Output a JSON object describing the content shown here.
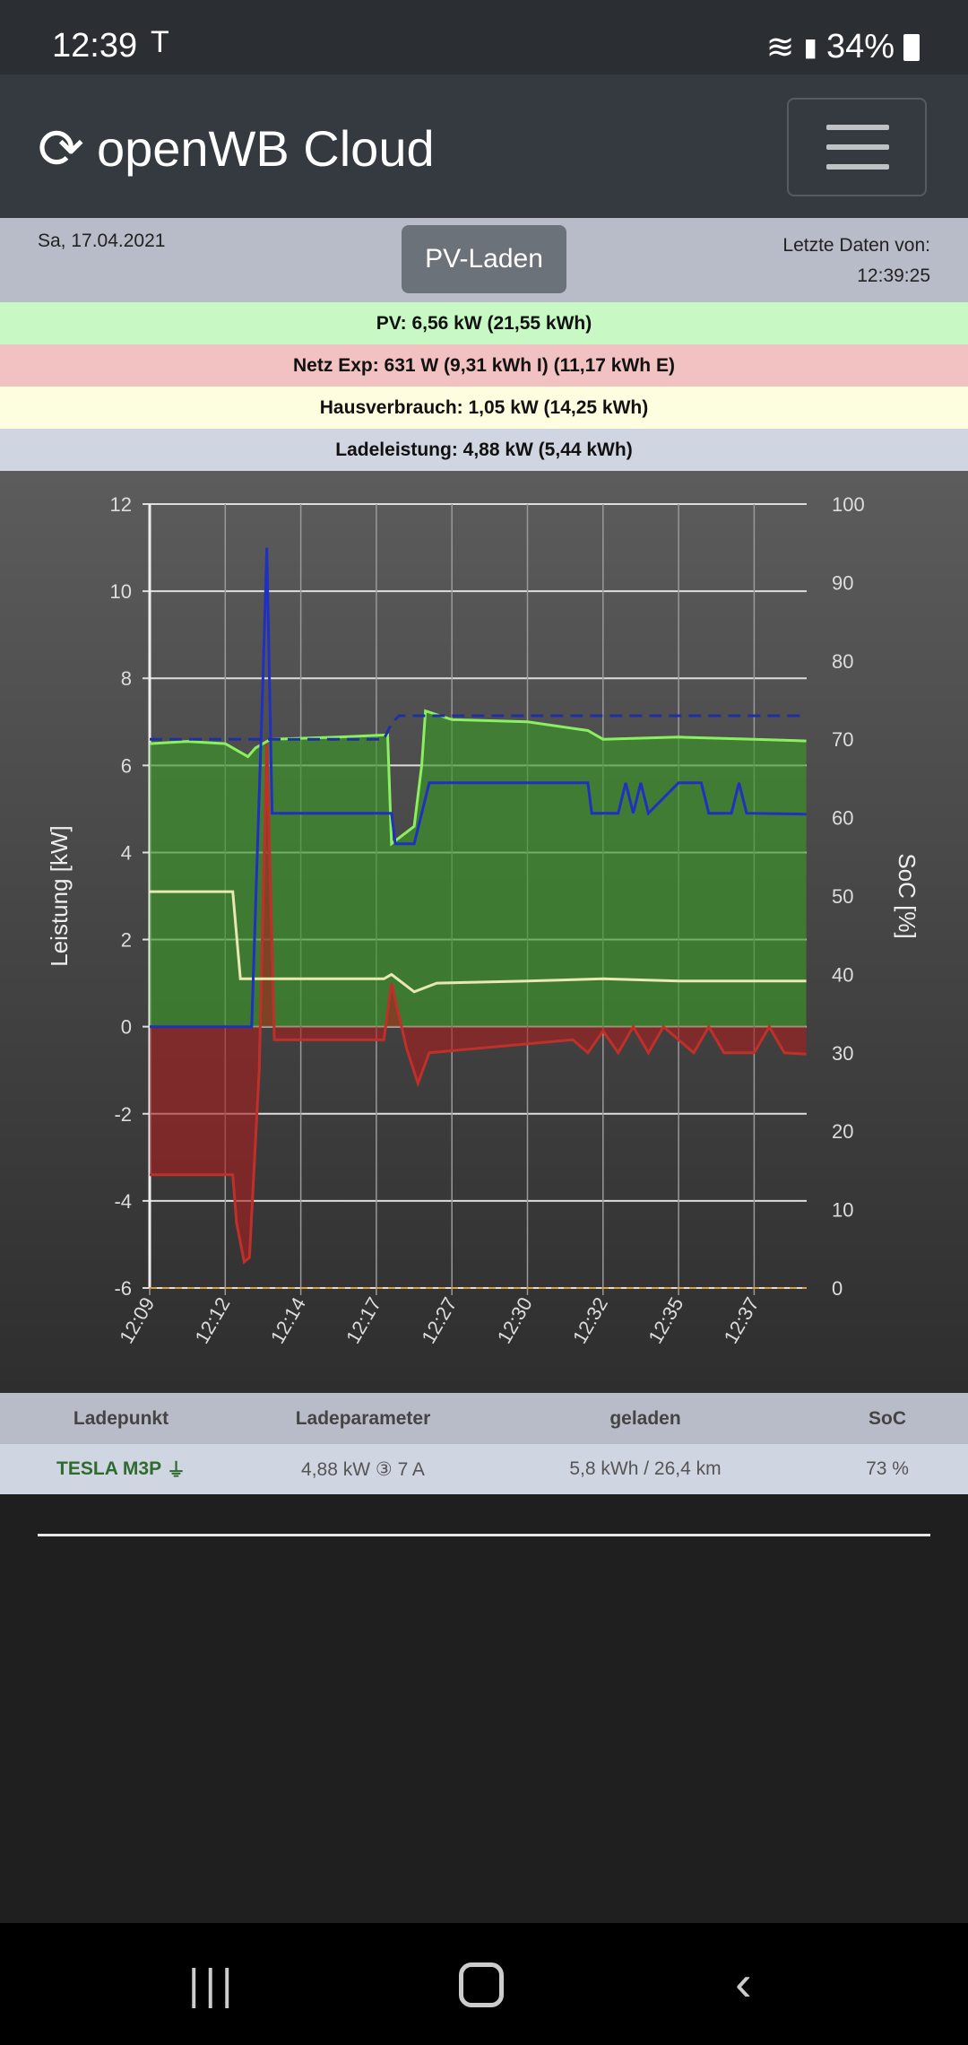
{
  "status_bar": {
    "time": "12:39",
    "battery": "34%"
  },
  "header": {
    "title": "openWB Cloud"
  },
  "info": {
    "date": "Sa, 17.04.2021",
    "mode_button": "PV-Laden",
    "last_data_label": "Letzte Daten von:",
    "last_data_time": "12:39:25"
  },
  "summary": {
    "pv": "PV: 6,56 kW (21,55 kWh)",
    "grid": "Netz Exp: 631 W (9,31 kWh I) (11,17 kWh E)",
    "house": "Hausverbrauch: 1,05 kW (14,25 kWh)",
    "charge": "Ladeleistung: 4,88 kW (5,44 kWh)"
  },
  "colors": {
    "pv": "#8af060",
    "grid": "#c0302a",
    "house": "#e8e8b0",
    "charge": "#2030c0",
    "soc": "#2030a0"
  },
  "chart_data": {
    "type": "line",
    "ylabel": "Leistung [kW]",
    "y2label": "SoC [%]",
    "ylim": [
      -6,
      12
    ],
    "y2lim": [
      0,
      100
    ],
    "yticks": [
      "12",
      "10",
      "8",
      "6",
      "4",
      "2",
      "0",
      "-2",
      "-4",
      "-6"
    ],
    "y2ticks": [
      "100",
      "90",
      "80",
      "70",
      "60",
      "50",
      "40",
      "30",
      "20",
      "10",
      "0"
    ],
    "categories": [
      "12:09",
      "12:12",
      "12:14",
      "12:17",
      "12:27",
      "12:30",
      "12:32",
      "12:35",
      "12:37"
    ],
    "series": [
      {
        "name": "PV",
        "fill": true,
        "points": [
          [
            0,
            6.5
          ],
          [
            0.5,
            6.55
          ],
          [
            1.0,
            6.5
          ],
          [
            1.3,
            6.2
          ],
          [
            1.4,
            6.4
          ],
          [
            1.6,
            6.6
          ],
          [
            2.5,
            6.65
          ],
          [
            3.15,
            6.7
          ],
          [
            3.2,
            4.2
          ],
          [
            3.5,
            4.6
          ],
          [
            3.6,
            6.0
          ],
          [
            3.65,
            7.25
          ],
          [
            4.0,
            7.05
          ],
          [
            5.0,
            7.0
          ],
          [
            5.8,
            6.8
          ],
          [
            6.0,
            6.6
          ],
          [
            7.0,
            6.65
          ],
          [
            8.0,
            6.6
          ],
          [
            8.69,
            6.56
          ]
        ]
      },
      {
        "name": "Netz",
        "fill": true,
        "points": [
          [
            0,
            -3.4
          ],
          [
            1.1,
            -3.4
          ],
          [
            1.15,
            -4.5
          ],
          [
            1.25,
            -5.4
          ],
          [
            1.32,
            -5.3
          ],
          [
            1.45,
            -1.0
          ],
          [
            1.55,
            6.5
          ],
          [
            1.65,
            -0.3
          ],
          [
            3.1,
            -0.3
          ],
          [
            3.2,
            1.0
          ],
          [
            3.4,
            -0.5
          ],
          [
            3.55,
            -1.3
          ],
          [
            3.7,
            -0.6
          ],
          [
            5.6,
            -0.3
          ],
          [
            5.8,
            -0.6
          ],
          [
            6.0,
            -0.1
          ],
          [
            6.2,
            -0.6
          ],
          [
            6.4,
            0
          ],
          [
            6.6,
            -0.6
          ],
          [
            6.8,
            0
          ],
          [
            7.2,
            -0.6
          ],
          [
            7.4,
            0
          ],
          [
            7.6,
            -0.6
          ],
          [
            8.0,
            -0.6
          ],
          [
            8.2,
            0
          ],
          [
            8.4,
            -0.6
          ],
          [
            8.69,
            -0.63
          ]
        ]
      },
      {
        "name": "Hausverbrauch",
        "fill": false,
        "points": [
          [
            0,
            3.1
          ],
          [
            1.1,
            3.1
          ],
          [
            1.2,
            1.1
          ],
          [
            1.5,
            1.1
          ],
          [
            3.1,
            1.1
          ],
          [
            3.2,
            1.2
          ],
          [
            3.5,
            0.8
          ],
          [
            3.8,
            1.0
          ],
          [
            5.0,
            1.05
          ],
          [
            6.0,
            1.1
          ],
          [
            7.0,
            1.05
          ],
          [
            8.69,
            1.05
          ]
        ]
      },
      {
        "name": "Ladeleistung",
        "fill": false,
        "points": [
          [
            0,
            0
          ],
          [
            1.35,
            0
          ],
          [
            1.5,
            8
          ],
          [
            1.55,
            11
          ],
          [
            1.62,
            4.9
          ],
          [
            3.2,
            4.9
          ],
          [
            3.25,
            4.2
          ],
          [
            3.5,
            4.2
          ],
          [
            3.7,
            5.6
          ],
          [
            5.8,
            5.6
          ],
          [
            5.85,
            4.9
          ],
          [
            6.2,
            4.9
          ],
          [
            6.3,
            5.6
          ],
          [
            6.4,
            4.9
          ],
          [
            6.5,
            5.6
          ],
          [
            6.6,
            4.9
          ],
          [
            7.0,
            5.6
          ],
          [
            7.3,
            5.6
          ],
          [
            7.4,
            4.9
          ],
          [
            7.7,
            4.9
          ],
          [
            7.8,
            5.6
          ],
          [
            7.9,
            4.9
          ],
          [
            8.69,
            4.88
          ]
        ]
      },
      {
        "name": "SoC",
        "axis": "right",
        "dashed": true,
        "points": [
          [
            0,
            70
          ],
          [
            3.1,
            70
          ],
          [
            3.2,
            72
          ],
          [
            3.3,
            73
          ],
          [
            8.69,
            73
          ]
        ]
      }
    ]
  },
  "table": {
    "headers": [
      "Ladepunkt",
      "Ladeparameter",
      "geladen",
      "SoC"
    ],
    "row": {
      "name": "TESLA M3P",
      "params": "4,88 kW ③ 7 A",
      "charged": "5,8 kWh / 26,4 km",
      "soc": "73 %"
    }
  }
}
